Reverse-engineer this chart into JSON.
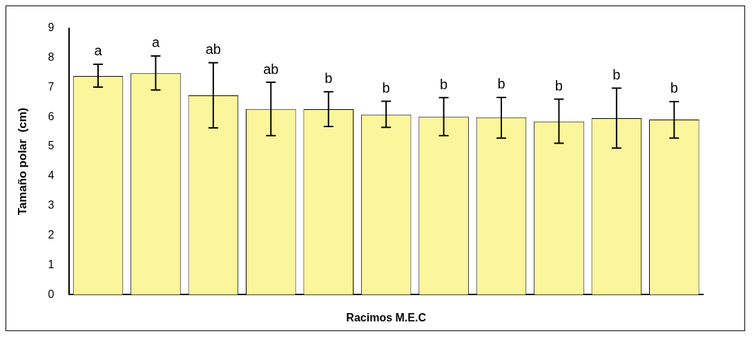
{
  "chart_data": {
    "type": "bar",
    "xlabel": "Racimos M.E.C",
    "ylabel": "Tamaño polar  (cm)",
    "categories": [
      null,
      null,
      null,
      null,
      null,
      null,
      null,
      null,
      null,
      null,
      null
    ],
    "values": [
      7.38,
      7.48,
      6.73,
      6.27,
      6.26,
      6.08,
      6.01,
      5.99,
      5.85,
      5.96,
      5.91
    ],
    "errors": [
      [
        7.01,
        7.78
      ],
      [
        6.91,
        8.06
      ],
      [
        5.63,
        7.83
      ],
      [
        5.37,
        7.17
      ],
      [
        5.68,
        6.85
      ],
      [
        5.65,
        6.53
      ],
      [
        5.37,
        6.65
      ],
      [
        5.29,
        6.66
      ],
      [
        5.11,
        6.6
      ],
      [
        4.95,
        6.97
      ],
      [
        5.29,
        6.52
      ]
    ],
    "value_labels": [
      "a",
      "a",
      "ab",
      "ab",
      "b",
      "b",
      "b",
      "b",
      "b",
      "b",
      "b"
    ],
    "color": "#fbf59c",
    "ylim": [
      0,
      9
    ],
    "yticks": [
      0,
      1,
      2,
      3,
      4,
      5,
      6,
      7,
      8,
      9
    ],
    "grid": false,
    "legend": false
  }
}
